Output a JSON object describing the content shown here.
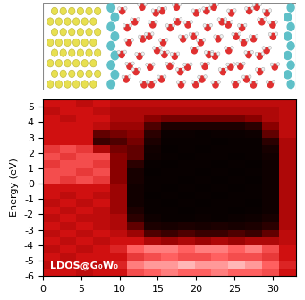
{
  "chart_data": {
    "type": "heatmap",
    "ylabel": "Energy (eV)",
    "annotation": "LDOS@G₀W₀",
    "xlim": [
      0,
      33
    ],
    "ylim": [
      -6,
      5.5
    ],
    "xticks": [
      0,
      5,
      10,
      15,
      20,
      25,
      30
    ],
    "yticks": [
      -6,
      -5,
      -4,
      -3,
      -2,
      -1,
      0,
      1,
      2,
      3,
      4,
      5
    ],
    "color_range": [
      0,
      1
    ],
    "x_edges": [
      0,
      2.2,
      4.4,
      6.6,
      8.8,
      11,
      13.2,
      15.4,
      17.6,
      19.8,
      22,
      24.2,
      26.4,
      28.6,
      30.8,
      33
    ],
    "y_edges": [
      -6,
      -5.5,
      -5,
      -4.5,
      -4,
      -3.5,
      -3,
      -2.5,
      -2,
      -1.5,
      -1,
      -0.5,
      0,
      0.5,
      1,
      1.5,
      2,
      2.5,
      3,
      3.5,
      4,
      4.5,
      5,
      5.5
    ],
    "cells": [
      [
        0.6,
        0.6,
        0.55,
        0.6,
        0.6,
        0.75,
        0.8,
        0.85,
        0.8,
        0.8,
        0.85,
        0.8,
        0.8,
        0.75,
        0.6
      ],
      [
        0.55,
        0.6,
        0.6,
        0.55,
        0.65,
        0.85,
        0.9,
        0.9,
        0.95,
        0.9,
        0.9,
        0.95,
        0.9,
        0.8,
        0.65
      ],
      [
        0.6,
        0.55,
        0.6,
        0.6,
        0.6,
        0.7,
        0.75,
        0.8,
        0.75,
        0.75,
        0.8,
        0.75,
        0.75,
        0.7,
        0.6
      ],
      [
        0.55,
        0.6,
        0.55,
        0.6,
        0.65,
        0.8,
        0.85,
        0.85,
        0.8,
        0.85,
        0.85,
        0.8,
        0.85,
        0.75,
        0.6
      ],
      [
        0.6,
        0.55,
        0.6,
        0.55,
        0.6,
        0.6,
        0.5,
        0.45,
        0.5,
        0.45,
        0.5,
        0.45,
        0.5,
        0.5,
        0.55
      ],
      [
        0.55,
        0.6,
        0.55,
        0.6,
        0.55,
        0.45,
        0.25,
        0.2,
        0.25,
        0.2,
        0.2,
        0.25,
        0.2,
        0.3,
        0.55
      ],
      [
        0.6,
        0.55,
        0.6,
        0.55,
        0.5,
        0.3,
        0.1,
        0.08,
        0.1,
        0.08,
        0.1,
        0.08,
        0.1,
        0.15,
        0.5
      ],
      [
        0.55,
        0.6,
        0.55,
        0.55,
        0.5,
        0.15,
        0.05,
        0.03,
        0.03,
        0.04,
        0.03,
        0.04,
        0.05,
        0.08,
        0.5
      ],
      [
        0.6,
        0.55,
        0.6,
        0.55,
        0.45,
        0.1,
        0.03,
        0.03,
        0.02,
        0.03,
        0.03,
        0.02,
        0.03,
        0.05,
        0.5
      ],
      [
        0.55,
        0.6,
        0.55,
        0.6,
        0.45,
        0.06,
        0.03,
        0.02,
        0.03,
        0.02,
        0.03,
        0.03,
        0.02,
        0.05,
        0.5
      ],
      [
        0.6,
        0.55,
        0.6,
        0.55,
        0.45,
        0.06,
        0.02,
        0.03,
        0.02,
        0.03,
        0.02,
        0.03,
        0.03,
        0.05,
        0.5
      ],
      [
        0.6,
        0.6,
        0.6,
        0.6,
        0.45,
        0.06,
        0.03,
        0.02,
        0.03,
        0.02,
        0.03,
        0.02,
        0.03,
        0.05,
        0.5
      ],
      [
        0.75,
        0.7,
        0.75,
        0.7,
        0.4,
        0.08,
        0.03,
        0.03,
        0.02,
        0.03,
        0.02,
        0.03,
        0.02,
        0.05,
        0.5
      ],
      [
        0.75,
        0.75,
        0.7,
        0.75,
        0.4,
        0.08,
        0.02,
        0.03,
        0.03,
        0.02,
        0.03,
        0.02,
        0.03,
        0.05,
        0.5
      ],
      [
        0.7,
        0.75,
        0.75,
        0.7,
        0.4,
        0.15,
        0.03,
        0.02,
        0.03,
        0.03,
        0.02,
        0.03,
        0.02,
        0.05,
        0.5
      ],
      [
        0.75,
        0.7,
        0.75,
        0.75,
        0.4,
        0.3,
        0.05,
        0.03,
        0.02,
        0.03,
        0.03,
        0.02,
        0.03,
        0.06,
        0.5
      ],
      [
        0.7,
        0.75,
        0.7,
        0.5,
        0.35,
        0.3,
        0.06,
        0.02,
        0.03,
        0.02,
        0.03,
        0.03,
        0.03,
        0.08,
        0.5
      ],
      [
        0.6,
        0.6,
        0.6,
        0.2,
        0.25,
        0.35,
        0.1,
        0.03,
        0.03,
        0.03,
        0.02,
        0.03,
        0.03,
        0.15,
        0.5
      ],
      [
        0.6,
        0.6,
        0.6,
        0.3,
        0.35,
        0.4,
        0.15,
        0.04,
        0.04,
        0.03,
        0.04,
        0.04,
        0.05,
        0.3,
        0.55
      ],
      [
        0.6,
        0.6,
        0.6,
        0.55,
        0.45,
        0.45,
        0.25,
        0.1,
        0.1,
        0.1,
        0.1,
        0.1,
        0.15,
        0.4,
        0.55
      ],
      [
        0.6,
        0.55,
        0.6,
        0.6,
        0.5,
        0.5,
        0.4,
        0.35,
        0.35,
        0.35,
        0.35,
        0.35,
        0.4,
        0.5,
        0.55
      ],
      [
        0.55,
        0.6,
        0.6,
        0.55,
        0.5,
        0.5,
        0.5,
        0.5,
        0.5,
        0.5,
        0.5,
        0.5,
        0.5,
        0.5,
        0.55
      ],
      [
        0.6,
        0.6,
        0.55,
        0.6,
        0.55,
        0.55,
        0.55,
        0.55,
        0.55,
        0.55,
        0.55,
        0.55,
        0.55,
        0.55,
        0.55
      ]
    ]
  }
}
